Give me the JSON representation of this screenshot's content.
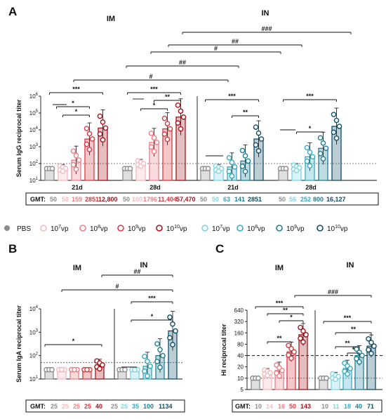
{
  "colors": {
    "pbs": "#8c8c8c",
    "im": [
      "#f5b8bd",
      "#ee7e87",
      "#d73a43",
      "#a0151c"
    ],
    "in": [
      "#7fd4e6",
      "#37a9c1",
      "#1a7f97",
      "#0f4f67"
    ],
    "ink": "#111111"
  },
  "legend": {
    "pbs": "PBS",
    "doses": [
      "10",
      "10",
      "10",
      "10"
    ],
    "exps": [
      "7",
      "8",
      "9",
      "10"
    ],
    "unit": "vp"
  },
  "chart_data": [
    {
      "panel": "A",
      "type": "bar",
      "group_headers": [
        "IM",
        "IN"
      ],
      "ylabel": "Serum IgG reciprocal titer",
      "yscale": "log",
      "ylim": [
        10,
        1000000
      ],
      "yticks": [
        "10",
        "10",
        "10",
        "10",
        "10",
        "10"
      ],
      "ytick_exps": [
        "1",
        "2",
        "3",
        "4",
        "5",
        "6"
      ],
      "ytick_values": [
        10,
        100,
        1000,
        10000,
        100000,
        1000000
      ],
      "threshold": 100,
      "categories": [
        "21d",
        "28d",
        "21d",
        "28d"
      ],
      "series": [
        {
          "values": [
            50,
            50,
            50,
            50
          ]
        },
        {
          "values": [
            50,
            100,
            50,
            56
          ]
        },
        {
          "values": [
            159,
            1796,
            63,
            252
          ]
        },
        {
          "values": [
            2851,
            11404,
            141,
            800
          ]
        },
        {
          "values": [
            12800,
            57470,
            2851,
            16127
          ]
        }
      ],
      "gmt_label": "GMT:",
      "gmt": [
        [
          "50",
          "50",
          "159",
          "2851",
          "12,800"
        ],
        [
          "50",
          "100",
          "1796",
          "11,404",
          "57,470"
        ],
        [
          "50",
          "50",
          "63",
          "141",
          "2851"
        ],
        [
          "50",
          "56",
          "252",
          "800",
          "16,127"
        ]
      ],
      "significance": [
        "***",
        "*",
        "*",
        "***",
        "**",
        "*",
        "***",
        "**",
        "***",
        "*",
        "#",
        "##",
        "#",
        "##",
        "###"
      ]
    },
    {
      "panel": "B",
      "type": "bar",
      "group_headers": [
        "IM",
        "IN"
      ],
      "ylabel": "Serum IgA reciprocal titer",
      "yscale": "log",
      "ylim": [
        10,
        10000
      ],
      "yticks": [
        "10",
        "10",
        "10",
        "10"
      ],
      "ytick_exps": [
        "1",
        "2",
        "3",
        "4"
      ],
      "ytick_values": [
        10,
        100,
        1000,
        10000
      ],
      "threshold": 50,
      "series_values": [
        [
          25,
          25,
          25,
          25,
          40
        ],
        [
          25,
          25,
          35,
          100,
          1134
        ]
      ],
      "gmt_label": "GMT:",
      "gmt": [
        [
          "25",
          "25",
          "25",
          "25",
          "40"
        ],
        [
          "25",
          "25",
          "35",
          "100",
          "1134"
        ]
      ],
      "significance": [
        "*",
        "*",
        "***",
        "#",
        "##"
      ]
    },
    {
      "panel": "C",
      "type": "bar",
      "group_headers": [
        "IM",
        "IN"
      ],
      "ylabel": "HI reciprocal titer",
      "yscale": "log",
      "ylim": [
        5,
        640
      ],
      "yticks": [
        "5",
        "10",
        "20",
        "40",
        "80",
        "160",
        "320",
        "640"
      ],
      "ytick_values": [
        5,
        10,
        20,
        40,
        80,
        160,
        320,
        640
      ],
      "thresholds": [
        40,
        10
      ],
      "series_values": [
        [
          10,
          14,
          16,
          50,
          143
        ],
        [
          10,
          11,
          18,
          40,
          71
        ]
      ],
      "gmt_label": "GMT:",
      "gmt": [
        [
          "10",
          "14",
          "16",
          "50",
          "143"
        ],
        [
          "10",
          "11",
          "18",
          "40",
          "71"
        ]
      ],
      "significance": [
        "***",
        "**",
        "**",
        "*",
        "***",
        "**",
        "**",
        "*",
        "###"
      ]
    }
  ]
}
